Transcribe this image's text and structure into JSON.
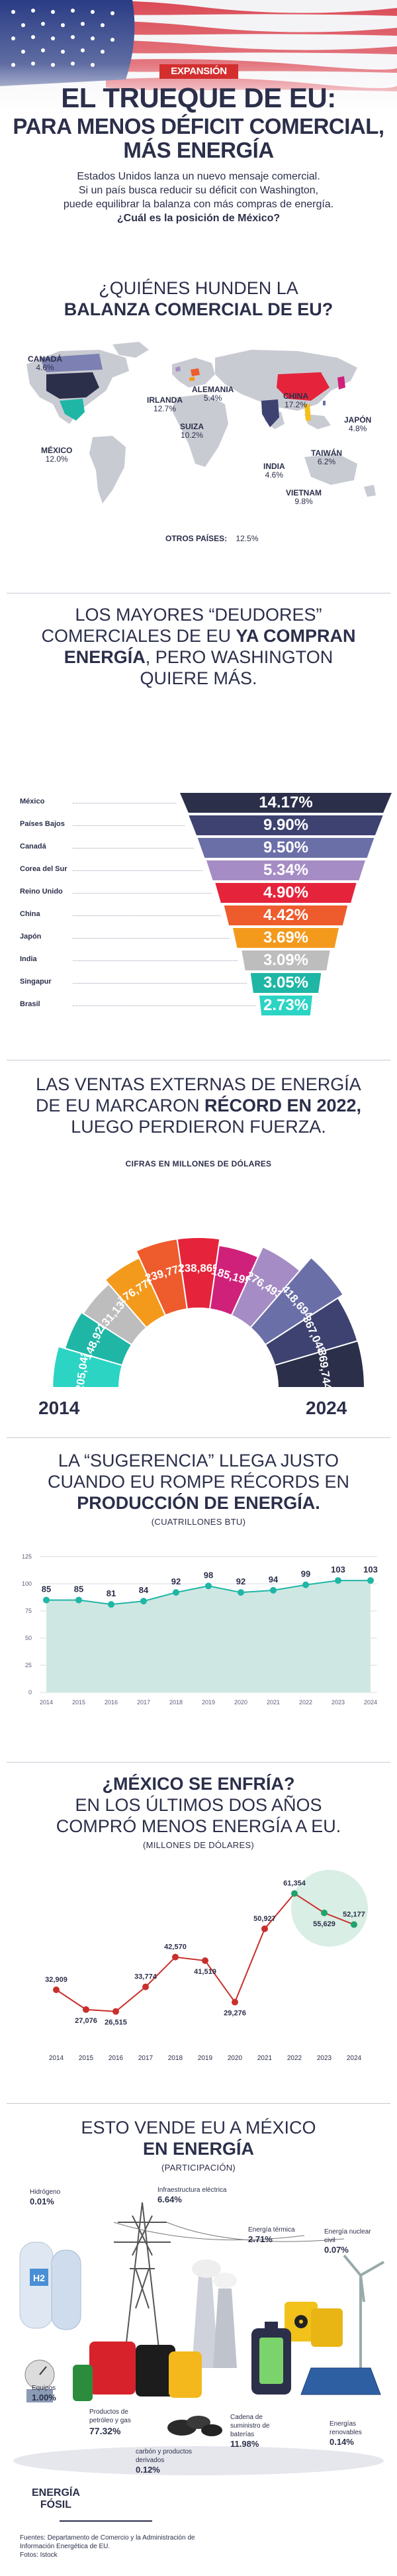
{
  "header": {
    "brand": "EXPANSIÓN",
    "title_line1": "EL TRUEQUE DE EU:",
    "title_line2": "PARA MENOS DÉFICIT COMERCIAL,",
    "title_line3": "MÁS ENERGÍA",
    "intro_line1": "Estados Unidos lanza un nuevo mensaje comercial.",
    "intro_line2": "Si un país busca reducir su déficit con Washington,",
    "intro_line3": "puede equilibrar la balanza con más compras de energía.",
    "intro_question": "¿Cuál es la posición de México?"
  },
  "map_section": {
    "title_line1": "¿QUIÉNES HUNDEN LA",
    "title_line2": "BALANZA COMERCIAL DE EU?",
    "labels": [
      {
        "name": "CANADÁ",
        "value": "4.6%"
      },
      {
        "name": "IRLANDA",
        "value": "12.7%"
      },
      {
        "name": "ALEMANIA",
        "value": "5.4%"
      },
      {
        "name": "SUIZA",
        "value": "10.2%"
      },
      {
        "name": "CHINA",
        "value": "17.2%"
      },
      {
        "name": "JAPÓN",
        "value": "4.8%"
      },
      {
        "name": "TAIWÁN",
        "value": "6.2%"
      },
      {
        "name": "MÉXICO",
        "value": "12.0%"
      },
      {
        "name": "INDIA",
        "value": "4.6%"
      },
      {
        "name": "VIETNAM",
        "value": "9.8%"
      }
    ],
    "others_label": "OTROS PAÍSES:",
    "others_value": "12.5%"
  },
  "funnel_section": {
    "title_line1": "LOS MAYORES “DEUDORES”",
    "title_line2_plain": "COMERCIALES DE EU ",
    "title_line2_bold": "YA COMPRAN",
    "title_line3_bold": "ENERGÍA",
    "title_line3_plain": ", PERO WASHINGTON",
    "title_line4": "QUIERE MÁS.",
    "rows": [
      {
        "country": "México",
        "value": "14.17%",
        "color": "#2b2f4a"
      },
      {
        "country": "Países Bajos",
        "value": "9.90%",
        "color": "#3d4270"
      },
      {
        "country": "Canadá",
        "value": "9.50%",
        "color": "#6b6fa8"
      },
      {
        "country": "Corea del Sur",
        "value": "5.34%",
        "color": "#a68cc4"
      },
      {
        "country": "Reino Unido",
        "value": "4.90%",
        "color": "#e5243b"
      },
      {
        "country": "China",
        "value": "4.42%",
        "color": "#ee5b2d"
      },
      {
        "country": "Japón",
        "value": "3.69%",
        "color": "#f39a1d"
      },
      {
        "country": "India",
        "value": "3.09%",
        "color": "#bdbdbd"
      },
      {
        "country": "Singapur",
        "value": "3.05%",
        "color": "#1fb6a6"
      },
      {
        "country": "Brasil",
        "value": "2.73%",
        "color": "#2cd4c4"
      }
    ]
  },
  "arc_section": {
    "title_line1": "LAS VENTAS EXTERNAS DE ENERGÍA",
    "title_line2_plain": "DE EU MARCARON ",
    "title_line2_bold": "RÉCORD EN 2022,",
    "title_line3": "LUEGO PERDIERON FUERZA.",
    "subtitle": "CIFRAS EN MILLONES DE DÓLARES",
    "start_year": "2014",
    "end_year": "2024"
  },
  "production_section": {
    "title_line1": "LA “SUGERENCIA” LLEGA JUSTO",
    "title_line2": "CUANDO EU ROMPE RÉCORDS EN",
    "title_line3_bold": "PRODUCCIÓN DE ENERGÍA.",
    "subtitle": "(CUATRILLONES BTU)"
  },
  "mexico_section": {
    "title_line1_bold": "¿MÉXICO SE ENFRÍA?",
    "title_line2": "EN LOS ÚLTIMOS DOS AÑOS",
    "title_line3": "COMPRÓ MENOS ENERGÍA A EU.",
    "subtitle": "(MILLONES DE DÓLARES)"
  },
  "sales_section": {
    "title_line1": "ESTO VENDE EU A MÉXICO",
    "title_line2_bold": "EN ENERGÍA",
    "subtitle": "(PARTICIPACIÓN)",
    "h2_label": "H2",
    "fossil_label_1": "ENERGÍA",
    "fossil_label_2": "FÓSIL",
    "items": [
      {
        "label": "Hidrógeno",
        "value": "0.01%"
      },
      {
        "label": "Infraestructura eléctrica",
        "value": "6.64%"
      },
      {
        "label": "Energía térmica",
        "value": "2.71%"
      },
      {
        "label": "Energía nuclear civil",
        "value": "0.07%"
      },
      {
        "label": "Equipos",
        "value": "1.00%"
      },
      {
        "label": "Productos de petróleo y gas",
        "value": "77.32%"
      },
      {
        "label": "Cadena de suministro de baterías",
        "value": "11.98%"
      },
      {
        "label": "Energías renovables",
        "value": "0.14%"
      },
      {
        "label": "carbón y productos derivados",
        "value": "0.12%"
      }
    ]
  },
  "footer": {
    "sources_line1": "Fuentes: Departamento de Comercio y la Administración de",
    "sources_line2": "Información Energética de EU.",
    "photos": "Fotos: Istock"
  },
  "chart_data": [
    {
      "type": "area",
      "title": "LA VENTAS EXTERNAS DE ENERGÍA DE EU",
      "subtitle": "CIFRAS EN MILLONES DE DÓLARES",
      "x": [
        "2014",
        "2015",
        "2016",
        "2017",
        "2018",
        "2019",
        "2020",
        "2021",
        "2022",
        "2023",
        "2024"
      ],
      "values": [
        205042,
        148923,
        131137,
        176778,
        239771,
        238869,
        185199,
        276493,
        418694,
        367048,
        369744
      ],
      "labels": [
        "205,042",
        "148,923",
        "131,137",
        "176,778",
        "239,771",
        "238,869",
        "185,199",
        "276,493",
        "418,694",
        "367,048",
        "369,744"
      ],
      "colors": [
        "#2cd4c4",
        "#1fb6a6",
        "#bdbdbd",
        "#f39a1d",
        "#ee5b2d",
        "#e5243b",
        "#d0217a",
        "#a68cc4",
        "#6b6fa8",
        "#3d4270",
        "#2b2f4a"
      ]
    },
    {
      "type": "area",
      "title": "PRODUCCIÓN DE ENERGÍA",
      "subtitle": "(CUATRILLONES BTU)",
      "x": [
        "2014",
        "2015",
        "2016",
        "2017",
        "2018",
        "2019",
        "2020",
        "2021",
        "2022",
        "2023",
        "2024"
      ],
      "values": [
        85,
        85,
        81,
        84,
        92,
        98,
        92,
        94,
        99,
        103,
        103
      ],
      "labels": [
        "85",
        "85",
        "81",
        "84",
        "92",
        "98",
        "92",
        "94",
        "99",
        "103",
        "103"
      ],
      "yticks": [
        0,
        25,
        50,
        75,
        100,
        125
      ],
      "ylim": [
        0,
        125
      ],
      "grid": true
    },
    {
      "type": "line",
      "title": "¿MÉXICO SE ENFRÍA?",
      "subtitle": "(MILLONES DE DÓLARES)",
      "x": [
        "2014",
        "2015",
        "2016",
        "2017",
        "2018",
        "2019",
        "2020",
        "2021",
        "2022",
        "2023",
        "2024"
      ],
      "values": [
        32909,
        27076,
        26515,
        33774,
        42570,
        41519,
        29276,
        50927,
        61354,
        55629,
        52177
      ],
      "labels": [
        "32,909",
        "27,076",
        "26,515",
        "33,774",
        "42,570",
        "41,519",
        "29,276",
        "50,927",
        "61,354",
        "55,629",
        "52,177"
      ]
    }
  ]
}
